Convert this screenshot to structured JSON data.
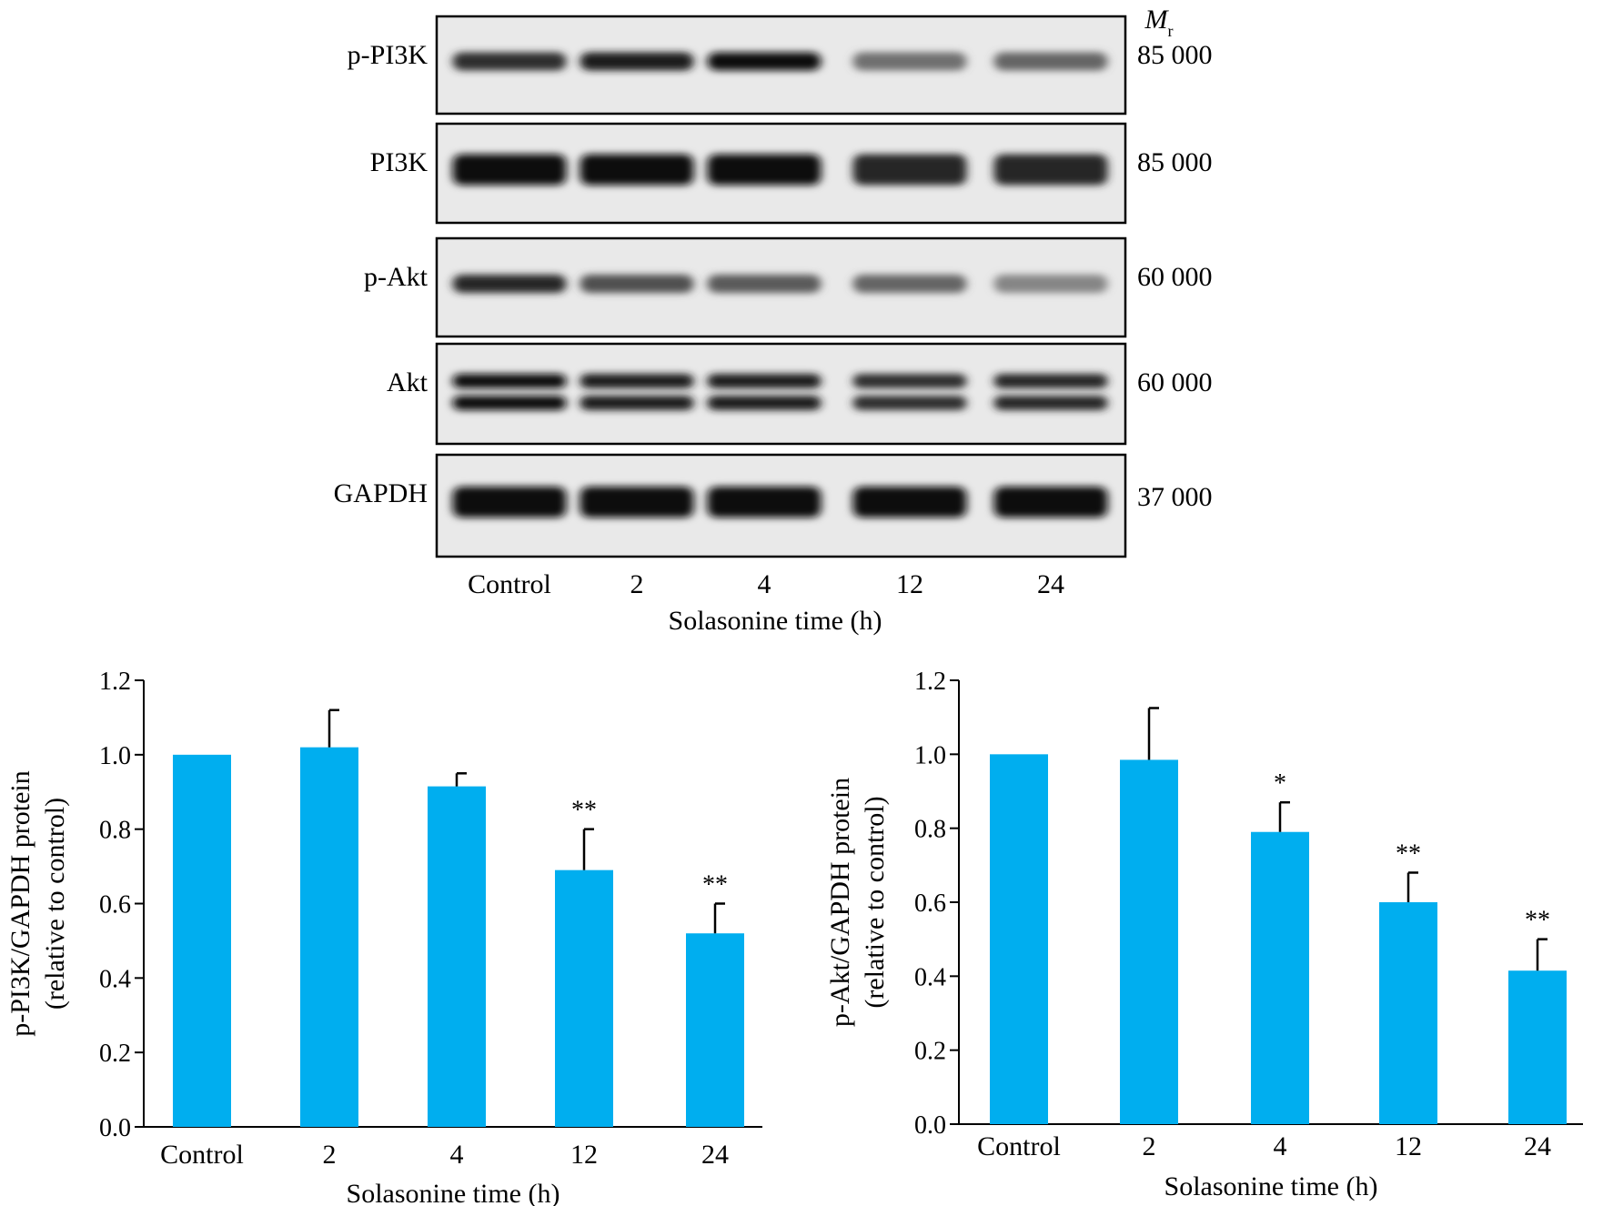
{
  "blot": {
    "mr_label": "M",
    "mr_sub": "r",
    "rows": [
      {
        "protein": "p-PI3K",
        "mr": "85 000",
        "band": "thin",
        "intensities": [
          0.85,
          0.95,
          1.0,
          0.55,
          0.6
        ]
      },
      {
        "protein": "PI3K",
        "mr": "85 000",
        "band": "thick",
        "intensities": [
          1.0,
          1.0,
          1.0,
          0.9,
          0.9
        ]
      },
      {
        "protein": "p-Akt",
        "mr": "60 000",
        "band": "thin",
        "intensities": [
          0.9,
          0.7,
          0.65,
          0.6,
          0.45
        ]
      },
      {
        "protein": "Akt",
        "mr": "60 000",
        "band": "double",
        "intensities": [
          1.0,
          0.95,
          0.95,
          0.85,
          0.9
        ]
      },
      {
        "protein": "GAPDH",
        "mr": "37 000",
        "band": "thick",
        "intensities": [
          1.0,
          1.0,
          1.0,
          1.0,
          1.0
        ]
      }
    ],
    "lanes": [
      "Control",
      "2",
      "4",
      "12",
      "24"
    ],
    "xlabel": "Solasonine time (h)"
  },
  "chart_data": [
    {
      "type": "bar",
      "categories": [
        "Control",
        "2",
        "4",
        "12",
        "24"
      ],
      "values": [
        1.0,
        1.02,
        0.915,
        0.69,
        0.52
      ],
      "errors": [
        0.0,
        0.1,
        0.035,
        0.11,
        0.08
      ],
      "significance": [
        "",
        "",
        "",
        "**",
        "**"
      ],
      "xlabel": "Solasonine time (h)",
      "ylabel": [
        "p-PI3K/GAPDH protein",
        "(relative to control)"
      ],
      "ylim": [
        0,
        1.2
      ],
      "yticks": [
        "0.0",
        "0.2",
        "0.4",
        "0.6",
        "0.8",
        "1.0",
        "1.2"
      ],
      "bar_color": "#00aeef",
      "grid": false
    },
    {
      "type": "bar",
      "categories": [
        "Control",
        "2",
        "4",
        "12",
        "24"
      ],
      "values": [
        1.0,
        0.985,
        0.79,
        0.6,
        0.415
      ],
      "errors": [
        0.0,
        0.14,
        0.08,
        0.08,
        0.085
      ],
      "significance": [
        "",
        "",
        "*",
        "**",
        "**"
      ],
      "xlabel": "Solasonine time (h)",
      "ylabel": [
        "p-Akt/GAPDH protein",
        "(relative to control)"
      ],
      "ylim": [
        0,
        1.2
      ],
      "yticks": [
        "0.0",
        "0.2",
        "0.4",
        "0.6",
        "0.8",
        "1.0",
        "1.2"
      ],
      "bar_color": "#00aeef",
      "grid": false
    }
  ]
}
